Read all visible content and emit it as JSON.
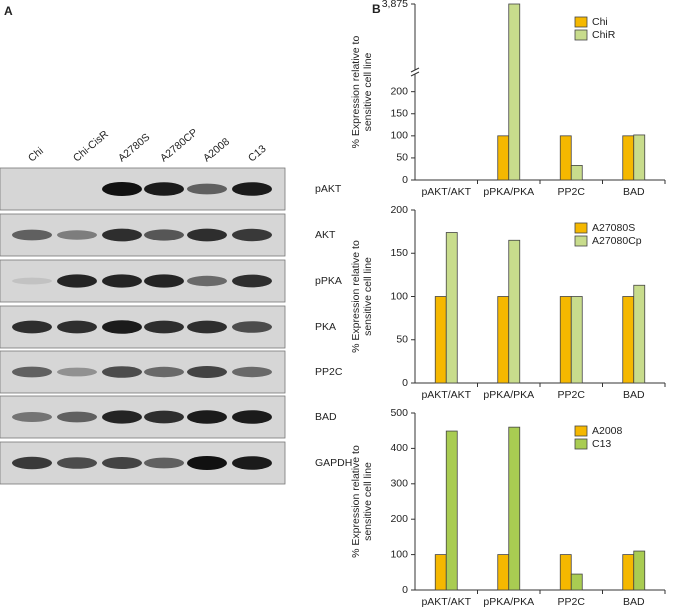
{
  "figure": {
    "panel_a": "A",
    "panel_b": "B"
  },
  "blot": {
    "lanes": [
      "Chi",
      "Chi-CisR",
      "A2780S",
      "A2780CP",
      "A2008",
      "C13"
    ],
    "proteins": [
      "pAKT",
      "AKT",
      "pPKA",
      "PKA",
      "PP2C",
      "BAD",
      "GAPDH"
    ]
  },
  "chart_data": [
    {
      "type": "bar",
      "ylabel": [
        "% Expression relative to",
        "sensitive cell line"
      ],
      "categories": [
        "pAKT/AKT",
        "pPKA/PKA",
        "PP2C",
        "BAD"
      ],
      "series": [
        {
          "name": "Chi",
          "color": "#f5b800",
          "values": [
            null,
            100,
            100,
            100
          ]
        },
        {
          "name": "ChiR",
          "color": "#c8dc8c",
          "values": [
            null,
            3875,
            33,
            102
          ]
        }
      ],
      "ylim": [
        0,
        3875
      ],
      "axis_break": [
        240,
        3500
      ],
      "yticks": [
        0,
        50,
        100,
        150,
        200,
        {
          "value": 3875,
          "label": "3,875"
        }
      ],
      "legend": "upper right"
    },
    {
      "type": "bar",
      "ylabel": [
        "% Expression relative to",
        "sensitive cell line"
      ],
      "categories": [
        "pAKT/AKT",
        "pPKA/PKA",
        "PP2C",
        "BAD"
      ],
      "series": [
        {
          "name": "A27080S",
          "color": "#f5b800",
          "values": [
            100,
            100,
            100,
            100
          ]
        },
        {
          "name": "A27080Cp",
          "color": "#c8dc8c",
          "values": [
            174,
            165,
            100,
            113
          ]
        }
      ],
      "ylim": [
        0,
        200
      ],
      "yticks": [
        0,
        50,
        100,
        150,
        200
      ],
      "legend": "upper right"
    },
    {
      "type": "bar",
      "ylabel": [
        "% Expression relative to",
        "sensitive cell line"
      ],
      "categories": [
        "pAKT/AKT",
        "pPKA/PKA",
        "PP2C",
        "BAD"
      ],
      "series": [
        {
          "name": "A2008",
          "color": "#f5b800",
          "values": [
            100,
            100,
            100,
            100
          ]
        },
        {
          "name": "C13",
          "color": "#a9cc52",
          "values": [
            449,
            460,
            45,
            110
          ]
        }
      ],
      "ylim": [
        0,
        500
      ],
      "yticks": [
        0,
        100,
        200,
        300,
        400,
        500
      ],
      "legend": "upper right"
    }
  ]
}
